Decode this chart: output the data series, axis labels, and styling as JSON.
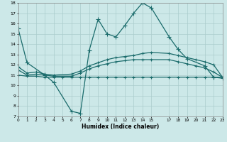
{
  "xlabel": "Humidex (Indice chaleur)",
  "xlim": [
    0,
    23
  ],
  "ylim": [
    7,
    18
  ],
  "xticks": [
    0,
    1,
    2,
    3,
    4,
    5,
    6,
    7,
    8,
    9,
    10,
    11,
    12,
    13,
    14,
    15,
    17,
    18,
    19,
    20,
    21,
    22,
    23
  ],
  "yticks": [
    7,
    8,
    9,
    10,
    11,
    12,
    13,
    14,
    15,
    16,
    17,
    18
  ],
  "bg_color": "#cce8e8",
  "line_color": "#1a6b6b",
  "grid_color": "#aacccc",
  "line1_x": [
    0,
    1,
    3,
    4,
    6,
    7,
    8,
    9,
    10,
    11,
    12,
    13,
    14,
    15,
    17,
    18,
    19,
    21,
    22,
    23
  ],
  "line1_y": [
    15.5,
    12.2,
    11.0,
    10.3,
    7.5,
    7.3,
    13.4,
    16.4,
    15.0,
    14.7,
    15.8,
    17.0,
    18.0,
    17.5,
    14.7,
    13.5,
    12.6,
    11.9,
    10.8,
    10.7
  ],
  "line2_x": [
    0,
    1,
    2,
    3,
    4,
    6,
    7,
    8,
    9,
    10,
    11,
    12,
    13,
    14,
    15,
    17,
    18,
    19,
    20,
    21,
    22,
    23
  ],
  "line2_y": [
    11.8,
    11.2,
    11.3,
    11.1,
    11.0,
    11.1,
    11.4,
    11.9,
    12.2,
    12.5,
    12.7,
    12.8,
    12.9,
    13.1,
    13.2,
    13.1,
    12.9,
    12.7,
    12.5,
    12.3,
    12.0,
    10.8
  ],
  "line3_x": [
    0,
    1,
    2,
    3,
    4,
    6,
    7,
    8,
    9,
    10,
    11,
    12,
    13,
    14,
    15,
    17,
    18,
    19,
    20,
    21,
    22,
    23
  ],
  "line3_y": [
    11.5,
    11.0,
    11.1,
    11.0,
    10.9,
    10.9,
    11.2,
    11.6,
    11.9,
    12.1,
    12.3,
    12.4,
    12.5,
    12.5,
    12.5,
    12.5,
    12.3,
    12.1,
    11.9,
    11.7,
    11.3,
    10.8
  ],
  "line4_x": [
    0,
    1,
    2,
    3,
    4,
    5,
    6,
    7,
    8,
    9,
    10,
    11,
    12,
    13,
    14,
    15,
    17,
    18,
    19,
    20,
    21,
    22,
    23
  ],
  "line4_y": [
    11.0,
    10.9,
    10.9,
    10.8,
    10.8,
    10.8,
    10.8,
    10.8,
    10.8,
    10.8,
    10.8,
    10.8,
    10.8,
    10.8,
    10.8,
    10.8,
    10.8,
    10.8,
    10.8,
    10.8,
    10.8,
    10.8,
    10.8
  ]
}
